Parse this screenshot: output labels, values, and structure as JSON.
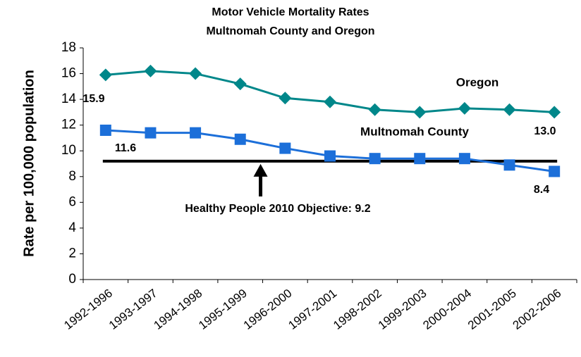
{
  "chart_data": {
    "type": "line",
    "title": [
      "Motor Vehicle Mortality Rates",
      "Multnomah County and Oregon"
    ],
    "y_label": "Rate per 100,000 population",
    "categories": [
      "1992-1996",
      "1993-1997",
      "1994-1998",
      "1995-1999",
      "1996-2000",
      "1997-2001",
      "1998-2002",
      "1999-2003",
      "2000-2004",
      "2001-2005",
      "2002-2006"
    ],
    "series": [
      {
        "name": "Oregon",
        "color": "#00878a",
        "marker": "diamond",
        "values": [
          15.9,
          16.2,
          16.0,
          15.2,
          14.1,
          13.8,
          13.2,
          13.0,
          13.3,
          13.2,
          13.0
        ],
        "value_labels": [
          "15.9",
          null,
          null,
          null,
          null,
          null,
          null,
          null,
          null,
          null,
          "13.0"
        ]
      },
      {
        "name": "Multnomah County",
        "color": "#1c6fd9",
        "marker": "square",
        "values": [
          11.6,
          11.4,
          11.4,
          10.9,
          10.2,
          9.6,
          9.4,
          9.4,
          9.4,
          8.9,
          8.4
        ],
        "value_labels": [
          "11.6",
          null,
          null,
          null,
          null,
          null,
          null,
          null,
          null,
          null,
          "8.4"
        ]
      }
    ],
    "objective": {
      "label": "Healthy People 2010 Objective: 9.2",
      "value": 9.2
    },
    "ylim": [
      0,
      18
    ],
    "yticks": [
      0,
      2,
      4,
      6,
      8,
      10,
      12,
      14,
      16,
      18
    ],
    "grid": false
  }
}
